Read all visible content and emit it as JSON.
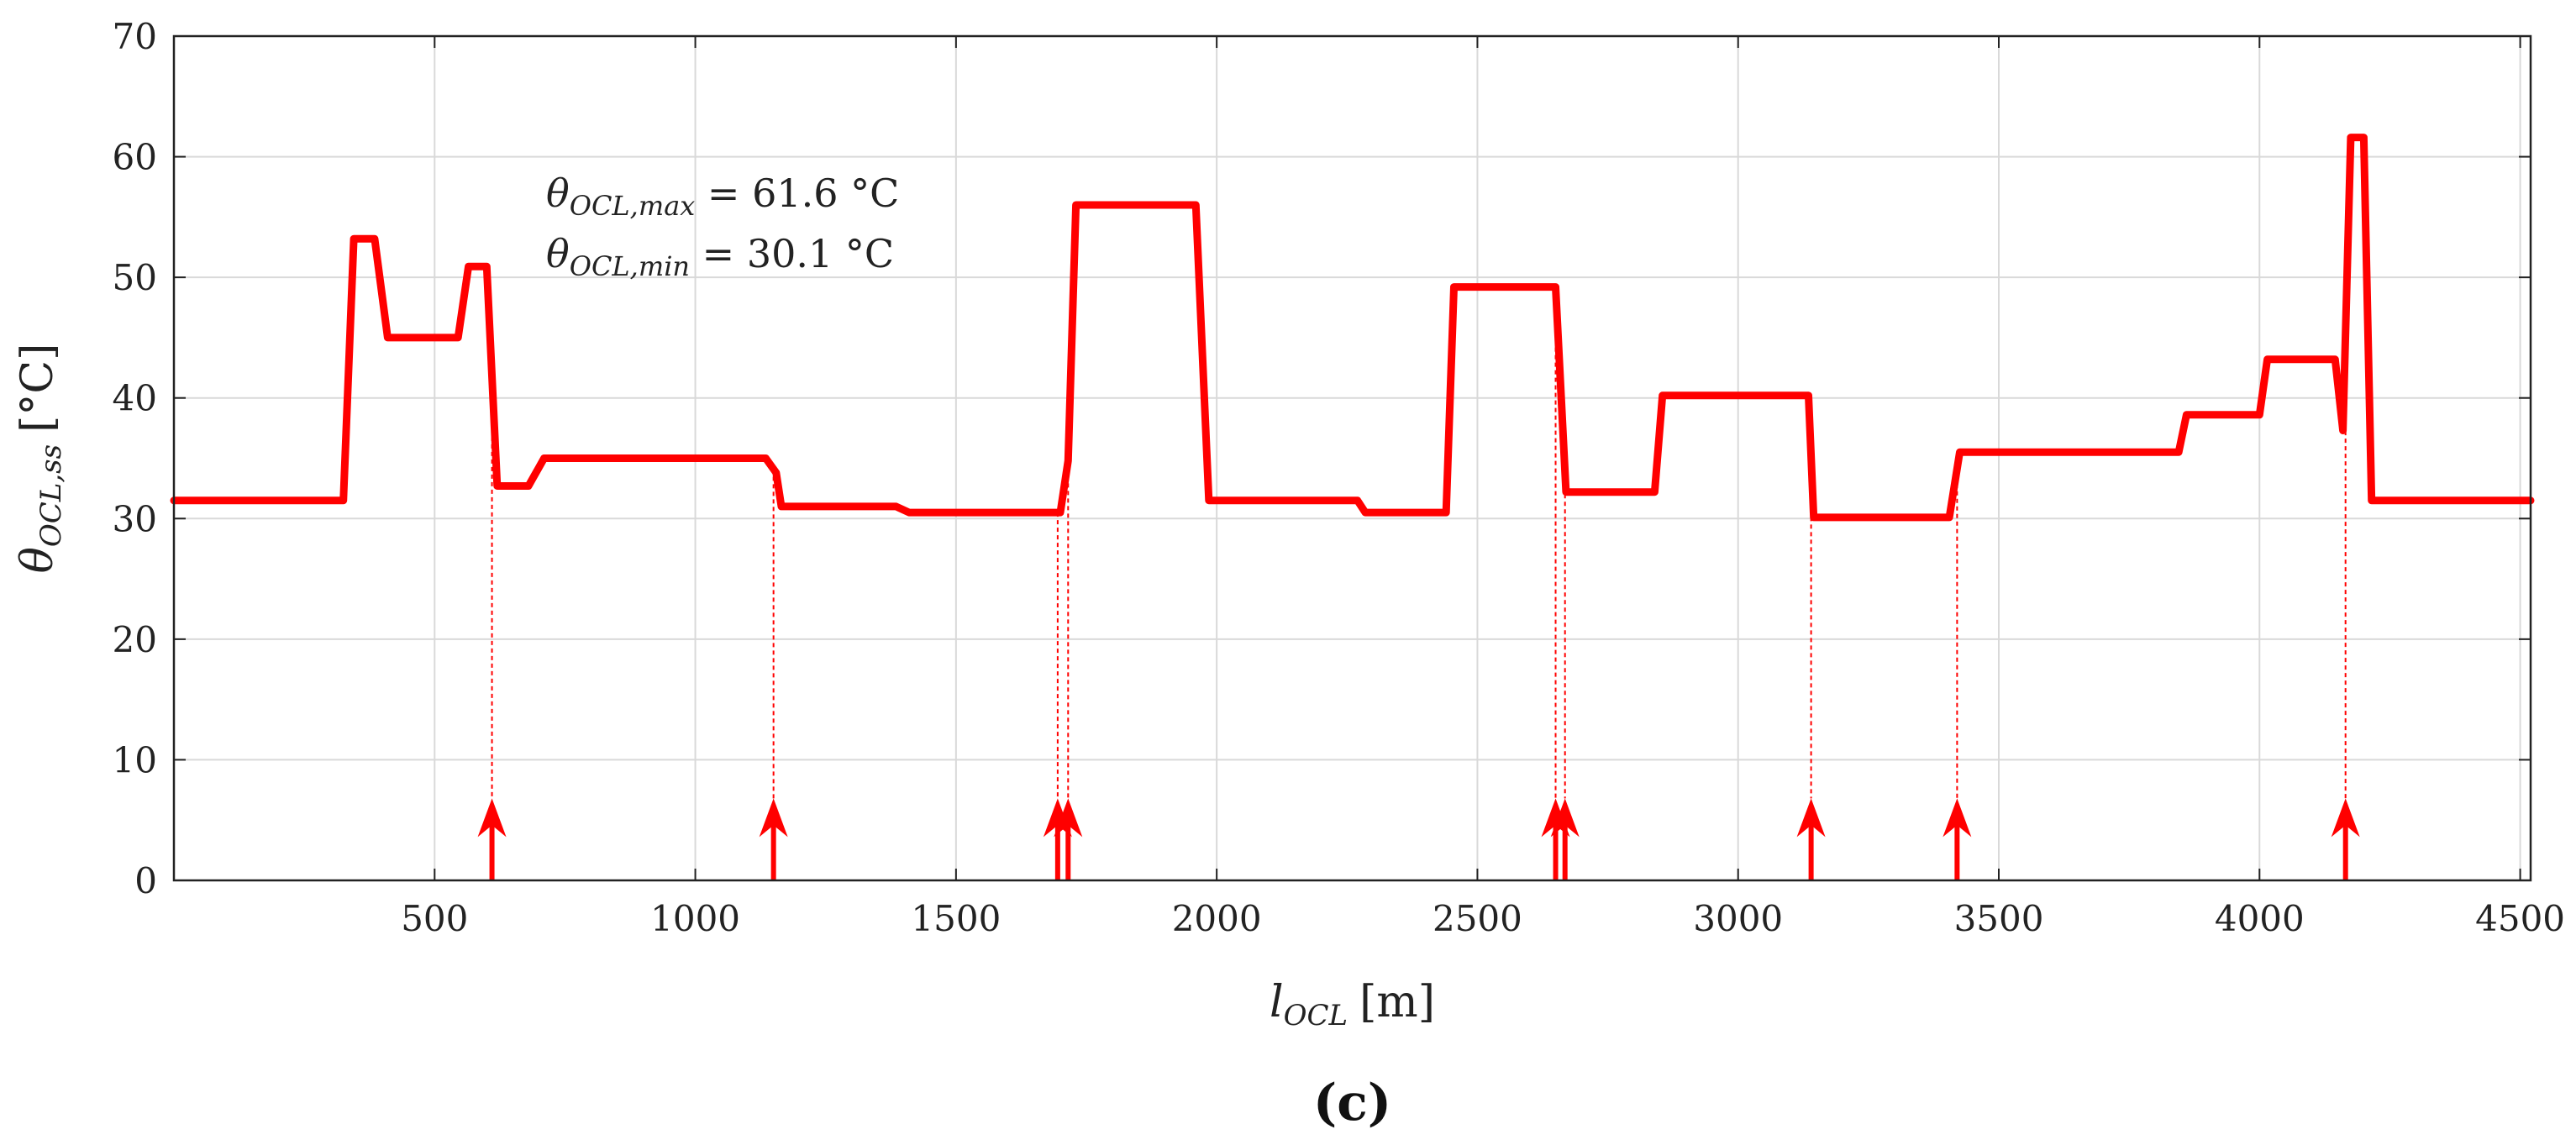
{
  "chart_data": {
    "type": "line",
    "xlabel_main": "l",
    "xlabel_sub": "OCL",
    "xlabel_unit": "[m]",
    "ylabel_main": "θ",
    "ylabel_sub": "OCL,ss",
    "ylabel_unit": "[°C]",
    "xlim": [
      0,
      4520
    ],
    "ylim": [
      0,
      70
    ],
    "xticks": [
      500,
      1000,
      1500,
      2000,
      2500,
      3000,
      3500,
      4000,
      4500
    ],
    "yticks": [
      0,
      10,
      20,
      30,
      40,
      50,
      60,
      70
    ],
    "grid": true,
    "series": [
      {
        "name": "θ_OCL,ss",
        "color": "#ff0000",
        "x": [
          0,
          325,
          345,
          385,
          410,
          545,
          565,
          600,
          620,
          680,
          710,
          830,
          1135,
          1155,
          1165,
          1385,
          1410,
          1700,
          1715,
          1730,
          1960,
          1985,
          2270,
          2285,
          2440,
          2455,
          2650,
          2670,
          2840,
          2855,
          3135,
          3145,
          3405,
          3425,
          3700,
          3845,
          3860,
          4000,
          4015,
          4145,
          4160,
          4175,
          4200,
          4215,
          4520
        ],
        "y": [
          31.5,
          31.5,
          53.2,
          53.2,
          45.0,
          45.0,
          50.9,
          50.9,
          32.7,
          32.7,
          35.0,
          35.0,
          35.0,
          33.8,
          31.0,
          31.0,
          30.5,
          30.5,
          34.8,
          56.0,
          56.0,
          31.5,
          31.5,
          30.5,
          30.5,
          49.2,
          49.2,
          32.2,
          32.2,
          40.2,
          40.2,
          30.1,
          30.1,
          35.5,
          35.5,
          35.5,
          38.6,
          38.6,
          43.2,
          43.2,
          37.3,
          61.6,
          61.6,
          31.5,
          31.5
        ]
      }
    ],
    "markers": {
      "type": "arrow",
      "x": [
        610,
        1150,
        1695,
        1715,
        2650,
        2668,
        3140,
        3420,
        4165
      ]
    },
    "annotations": [
      {
        "sym": "θ",
        "sub": "OCL,max",
        "rest": " = 61.6 °C"
      },
      {
        "sym": "θ",
        "sub": "OCL,min",
        "rest": " = 30.1 °C"
      }
    ],
    "caption": "(c)"
  }
}
